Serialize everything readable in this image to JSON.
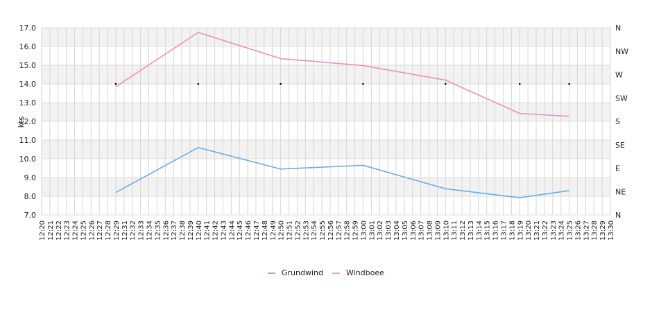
{
  "chart_data": {
    "type": "line",
    "ylabel": "kts",
    "ylim": [
      7.0,
      17.0
    ],
    "y_ticks": [
      "7.0",
      "8.0",
      "9.0",
      "10.0",
      "11.0",
      "12.0",
      "13.0",
      "14.0",
      "15.0",
      "16.0",
      "17.0"
    ],
    "right_axis_labels": [
      "N",
      "NE",
      "E",
      "SE",
      "S",
      "SW",
      "W",
      "NW",
      "N"
    ],
    "x_ticks": [
      "12:20",
      "12:21",
      "12:22",
      "12:23",
      "12:24",
      "12:25",
      "12:26",
      "12:27",
      "12:28",
      "12:29",
      "12:31",
      "12:32",
      "12:33",
      "12:34",
      "12:35",
      "12:36",
      "12:37",
      "12:38",
      "12:39",
      "12:40",
      "12:41",
      "12:42",
      "12:43",
      "12:44",
      "12:45",
      "12:46",
      "12:47",
      "12:48",
      "12:49",
      "12:50",
      "12:51",
      "12:52",
      "12:53",
      "12:54",
      "12:55",
      "12:56",
      "12:57",
      "12:58",
      "12:59",
      "13:00",
      "13:01",
      "13:02",
      "13:03",
      "13:04",
      "13:05",
      "13:06",
      "13:07",
      "13:08",
      "13:09",
      "13:10",
      "13:11",
      "13:12",
      "13:13",
      "13:14",
      "13:15",
      "13:16",
      "13:17",
      "13:18",
      "13:19",
      "13:20",
      "13:21",
      "13:22",
      "13:23",
      "13:24",
      "13:25",
      "13:26",
      "13:27",
      "13:28",
      "13:29",
      "13:30"
    ],
    "grid": true,
    "legend_position": "bottom",
    "series": [
      {
        "name": "Grundwind",
        "color": "#6aaee8",
        "x_index": [
          9,
          19,
          29,
          39,
          49,
          58,
          64
        ],
        "values": [
          8.2,
          10.6,
          9.45,
          9.65,
          8.4,
          7.92,
          8.3
        ]
      },
      {
        "name": "Windboee",
        "color": "#ee8fb8",
        "x_index": [
          9,
          19,
          29,
          39,
          49,
          58,
          64
        ],
        "values": [
          13.85,
          16.75,
          15.35,
          14.98,
          14.2,
          12.42,
          12.27
        ]
      }
    ],
    "direction_markers": {
      "x_index": [
        9,
        19,
        29,
        39,
        49,
        58,
        64
      ],
      "values": [
        14.0,
        14.0,
        14.0,
        14.0,
        14.0,
        14.0,
        14.0
      ]
    }
  }
}
